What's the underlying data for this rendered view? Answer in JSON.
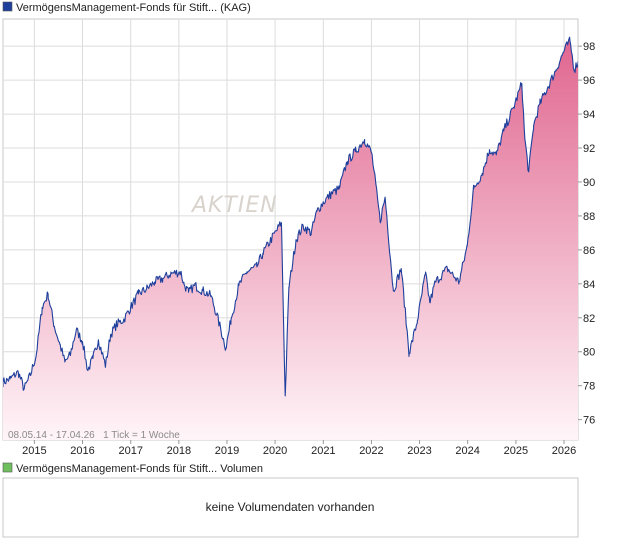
{
  "price_panel": {
    "legend_label": "VermögensManagement-Fonds für Stift... (KAG)",
    "legend_color": "#1f3f9c",
    "range_note": "08.05.14 - 17.04.26   1 Tick = 1 Woche"
  },
  "volume_panel": {
    "legend_label": "VermögensManagement-Fonds für Stift... Volumen",
    "legend_color": "#6fbf5f",
    "empty_message": "keine Volumendaten vorhanden"
  },
  "watermark": "AKTIEN",
  "colors": {
    "line": "#1f3f9c",
    "fill_top": "#e0658f",
    "fill_bottom": "#fff5f8",
    "grid": "#dcdcdc",
    "frame": "#c8c8c8"
  },
  "chart_data": {
    "type": "area",
    "title": "VermögensManagement-Fonds für Stift... (KAG)",
    "xlabel": "",
    "ylabel": "",
    "x_ticks": [
      "2015",
      "2016",
      "2017",
      "2018",
      "2019",
      "2020",
      "2021",
      "2022",
      "2023",
      "2024",
      "2025",
      "2026"
    ],
    "y_ticks": [
      76,
      78,
      80,
      82,
      84,
      86,
      88,
      90,
      92,
      94,
      96,
      98
    ],
    "xlim": [
      "2014-05-08",
      "2026-04-17"
    ],
    "ylim": [
      74.8,
      99.6
    ],
    "grid": true,
    "legend_position": "top-left",
    "x": [
      "2014-05-08",
      "2014-07-01",
      "2014-09-01",
      "2014-10-15",
      "2014-12-01",
      "2015-01-15",
      "2015-03-01",
      "2015-04-15",
      "2015-06-01",
      "2015-07-15",
      "2015-08-20",
      "2015-09-30",
      "2015-11-15",
      "2016-01-01",
      "2016-02-10",
      "2016-03-20",
      "2016-05-01",
      "2016-06-24",
      "2016-08-01",
      "2016-09-15",
      "2016-11-10",
      "2016-12-31",
      "2017-03-01",
      "2017-05-01",
      "2017-07-01",
      "2017-09-01",
      "2017-11-01",
      "2018-01-15",
      "2018-02-08",
      "2018-03-15",
      "2018-05-01",
      "2018-07-01",
      "2018-09-01",
      "2018-10-15",
      "2018-12-24",
      "2019-02-01",
      "2019-04-01",
      "2019-06-01",
      "2019-08-15",
      "2019-10-01",
      "2019-12-01",
      "2020-02-18",
      "2020-03-18",
      "2020-04-15",
      "2020-06-08",
      "2020-08-01",
      "2020-10-01",
      "2020-11-15",
      "2021-01-01",
      "2021-03-01",
      "2021-05-01",
      "2021-07-01",
      "2021-09-01",
      "2021-11-10",
      "2022-01-03",
      "2022-03-08",
      "2022-04-15",
      "2022-06-16",
      "2022-08-15",
      "2022-10-14",
      "2022-12-15",
      "2023-02-15",
      "2023-03-20",
      "2023-05-01",
      "2023-07-31",
      "2023-10-27",
      "2023-12-28",
      "2024-02-15",
      "2024-04-20",
      "2024-06-15",
      "2024-08-05",
      "2024-09-30",
      "2024-12-15",
      "2025-02-15",
      "2025-03-10",
      "2025-04-08",
      "2025-05-15",
      "2025-07-01",
      "2025-09-01",
      "2025-11-01",
      "2026-01-05",
      "2026-02-15",
      "2026-03-20",
      "2026-04-17"
    ],
    "series": [
      {
        "values": [
          78.2,
          78.4,
          78.8,
          77.8,
          78.6,
          79.8,
          82.6,
          83.4,
          81.5,
          80.4,
          79.4,
          79.8,
          81.3,
          80.6,
          78.9,
          79.6,
          80.7,
          79.2,
          81.0,
          81.6,
          81.9,
          82.6,
          83.4,
          83.7,
          84.1,
          84.3,
          84.6,
          84.7,
          84.0,
          83.5,
          83.9,
          83.6,
          83.3,
          82.2,
          80.2,
          81.9,
          83.9,
          84.7,
          85.0,
          85.8,
          86.6,
          87.6,
          77.4,
          83.8,
          86.6,
          87.4,
          87.0,
          88.3,
          88.8,
          89.3,
          89.6,
          91.2,
          91.8,
          92.5,
          91.7,
          87.7,
          89.1,
          83.6,
          84.9,
          79.9,
          81.8,
          84.6,
          82.9,
          84.1,
          84.9,
          84.1,
          86.2,
          89.6,
          90.5,
          91.9,
          91.6,
          93.0,
          94.4,
          95.8,
          92.5,
          90.6,
          93.3,
          94.6,
          95.6,
          96.6,
          97.8,
          98.3,
          96.6,
          97.1
        ]
      }
    ]
  }
}
